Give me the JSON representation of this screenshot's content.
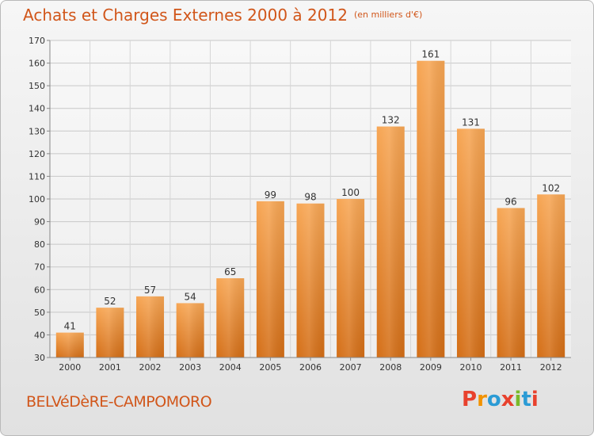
{
  "header": {
    "title": "Achats et Charges Externes 2000 à 2012",
    "unit": "(en milliers d'€)"
  },
  "footer": {
    "commune": "BELVéDèRE-CAMPOMORO",
    "logo": "Proxiti",
    "logo_colors": [
      "#e8412d",
      "#f29200",
      "#2b9bd5",
      "#e8412d",
      "#7ab929",
      "#2b9bd5",
      "#e8412d"
    ]
  },
  "colors": {
    "title": "#d1561a",
    "bar_top": "#f7a654",
    "bar_bottom": "#d46e16"
  },
  "chart_data": {
    "type": "bar",
    "title": "Achats et Charges Externes 2000 à 2012",
    "xlabel": "",
    "ylabel": "",
    "categories": [
      "2000",
      "2001",
      "2002",
      "2003",
      "2004",
      "2005",
      "2006",
      "2007",
      "2008",
      "2009",
      "2010",
      "2011",
      "2012"
    ],
    "values": [
      41,
      52,
      57,
      54,
      65,
      99,
      98,
      100,
      132,
      161,
      131,
      96,
      102
    ],
    "ylim": [
      30,
      170
    ],
    "yticks": [
      30,
      40,
      50,
      60,
      70,
      80,
      90,
      100,
      110,
      120,
      130,
      140,
      150,
      160,
      170
    ],
    "grid": true,
    "legend": "none"
  }
}
